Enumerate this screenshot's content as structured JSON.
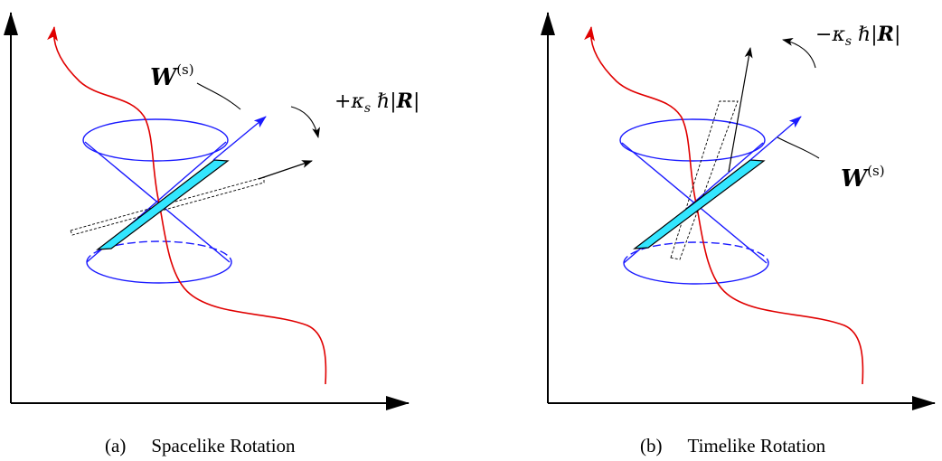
{
  "panels": [
    {
      "caption_tag": "(a)",
      "caption_text": "Spacelike Rotation",
      "w_label_base": "W",
      "w_label_sup": "(s)",
      "rotation_label_sign": "+",
      "rotation_label_rest": "κ",
      "rotation_label_sub": "s",
      "rotation_label_tail": " ℏ|",
      "rotation_label_R": "R",
      "rotation_label_end": "|"
    },
    {
      "caption_tag": "(b)",
      "caption_text": "Timelike Rotation",
      "w_label_base": "W",
      "w_label_sup": "(s)",
      "rotation_label_sign": "−",
      "rotation_label_rest": "κ",
      "rotation_label_sub": "s",
      "rotation_label_tail": " ℏ|",
      "rotation_label_R": "R",
      "rotation_label_end": "|"
    }
  ],
  "colors": {
    "axis": "#000000",
    "worldline": "#e00000",
    "light_cone": "#1a1aff",
    "plate_fill": "#33e6ff"
  }
}
